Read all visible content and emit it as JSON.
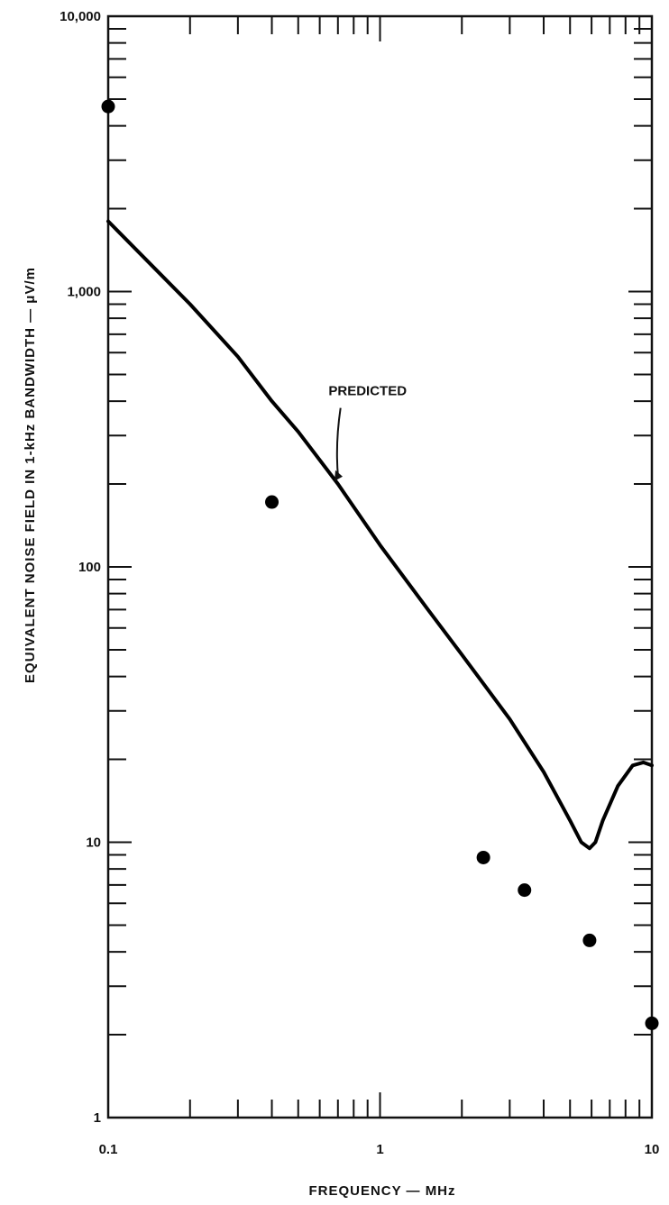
{
  "chart_data": {
    "type": "line",
    "title": "",
    "xlabel": "FREQUENCY — MHz",
    "ylabel": "EQUIVALENT NOISE FIELD IN 1-kHz BANDWIDTH — μV/m",
    "x_scale": "log",
    "y_scale": "log",
    "xlim": [
      0.1,
      10
    ],
    "ylim": [
      1,
      10000
    ],
    "x_ticks": [
      {
        "value": 0.1,
        "label": "0.1"
      },
      {
        "value": 1,
        "label": "1"
      },
      {
        "value": 10,
        "label": "10"
      }
    ],
    "y_ticks": [
      {
        "value": 1,
        "label": "1"
      },
      {
        "value": 10,
        "label": "10"
      },
      {
        "value": 100,
        "label": "100"
      },
      {
        "value": 1000,
        "label": "1,000"
      },
      {
        "value": 10000,
        "label": "10,000"
      }
    ],
    "grid": false,
    "series": [
      {
        "name": "PREDICTED",
        "style": "line",
        "color": "#000000",
        "x": [
          0.1,
          0.15,
          0.2,
          0.3,
          0.4,
          0.5,
          0.7,
          1.0,
          1.5,
          2.0,
          3.0,
          4.0,
          5.0,
          5.5,
          5.9,
          6.2,
          6.6,
          7.5,
          8.5,
          9.3,
          10.0
        ],
        "y": [
          1800,
          1200,
          900,
          580,
          400,
          310,
          200,
          120,
          70,
          48,
          28,
          18,
          12,
          10,
          9.5,
          10,
          12,
          16,
          19,
          19.5,
          19
        ]
      },
      {
        "name": "",
        "style": "scatter",
        "color": "#000000",
        "x": [
          0.1,
          0.4,
          2.4,
          3.4,
          5.9,
          10.0
        ],
        "y": [
          4700,
          172,
          8.8,
          6.7,
          4.4,
          2.2
        ]
      }
    ],
    "annotations": [
      {
        "text": "PREDICTED",
        "x": 0.9,
        "y": 420,
        "arrow_to_x": 0.68,
        "arrow_to_y": 205
      }
    ]
  }
}
